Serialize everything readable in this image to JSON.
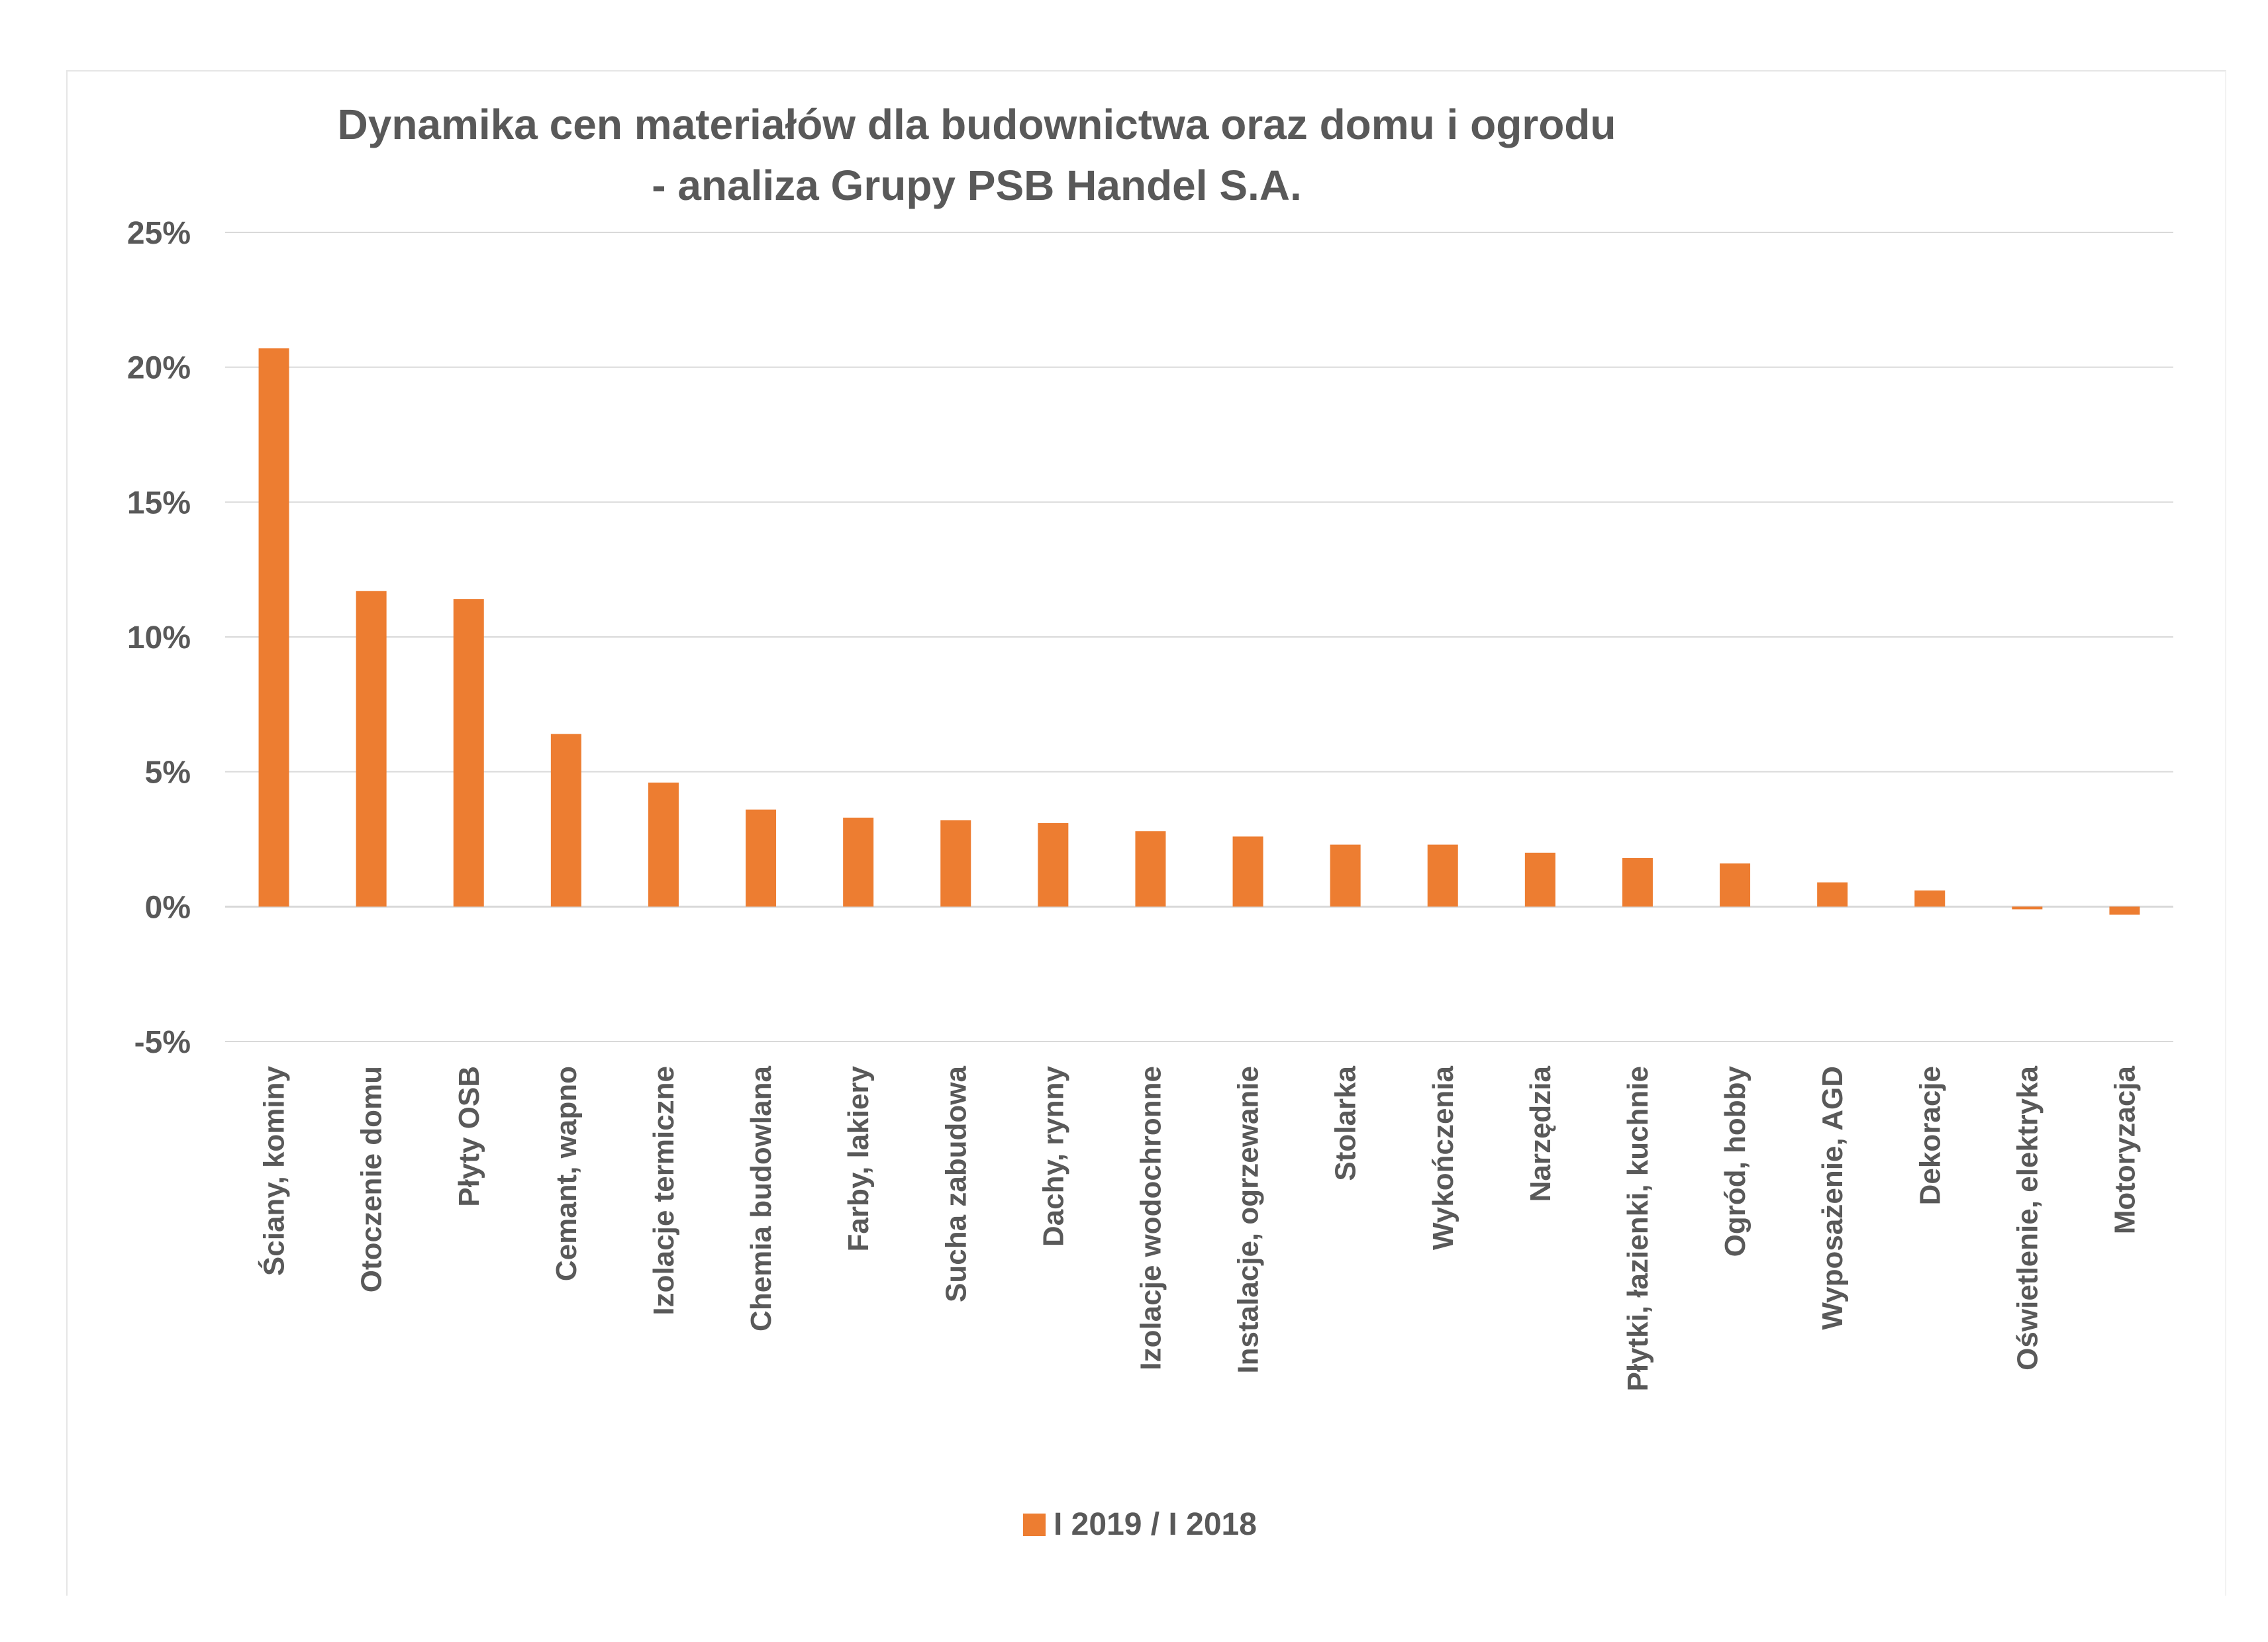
{
  "chart_data": {
    "type": "bar",
    "title_lines": [
      "Dynamika cen materiałów dla budownictwa oraz domu i ogrodu",
      "- analiza Grupy PSB Handel S.A."
    ],
    "categories": [
      "Ściany, kominy",
      "Otoczenie domu",
      "Płyty OSB",
      "Cemant, wapno",
      "Izolacje termiczne",
      "Chemia budowlana",
      "Farby, lakiery",
      "Sucha zabudowa",
      "Dachy, rynny",
      "Izolacje wodochronne",
      "Instalacje, ogrzewanie",
      "Stolarka",
      "Wykończenia",
      "Narzędzia",
      "Płytki, łazienki, kuchnie",
      "Ogród, hobby",
      "Wyposażenie, AGD",
      "Dekoracje",
      "Oświetlenie, elektryka",
      "Motoryzacja"
    ],
    "series": [
      {
        "name": "I 2019 / I 2018",
        "values": [
          20.7,
          11.7,
          11.4,
          6.4,
          4.6,
          3.6,
          3.3,
          3.2,
          3.1,
          2.8,
          2.6,
          2.3,
          2.3,
          2.0,
          1.8,
          1.6,
          0.9,
          0.6,
          -0.1,
          -0.3
        ]
      }
    ],
    "ylim": [
      -5,
      25
    ],
    "yticks": [
      25,
      20,
      15,
      10,
      5,
      0,
      -5
    ],
    "ytick_labels": [
      "25%",
      "20%",
      "15%",
      "10%",
      "5%",
      "0%",
      "-5%"
    ],
    "grid": true,
    "legend_position": "bottom",
    "colors": {
      "bar": "#ED7D31",
      "grid": "#d9d9d9",
      "text": "#595959"
    }
  }
}
